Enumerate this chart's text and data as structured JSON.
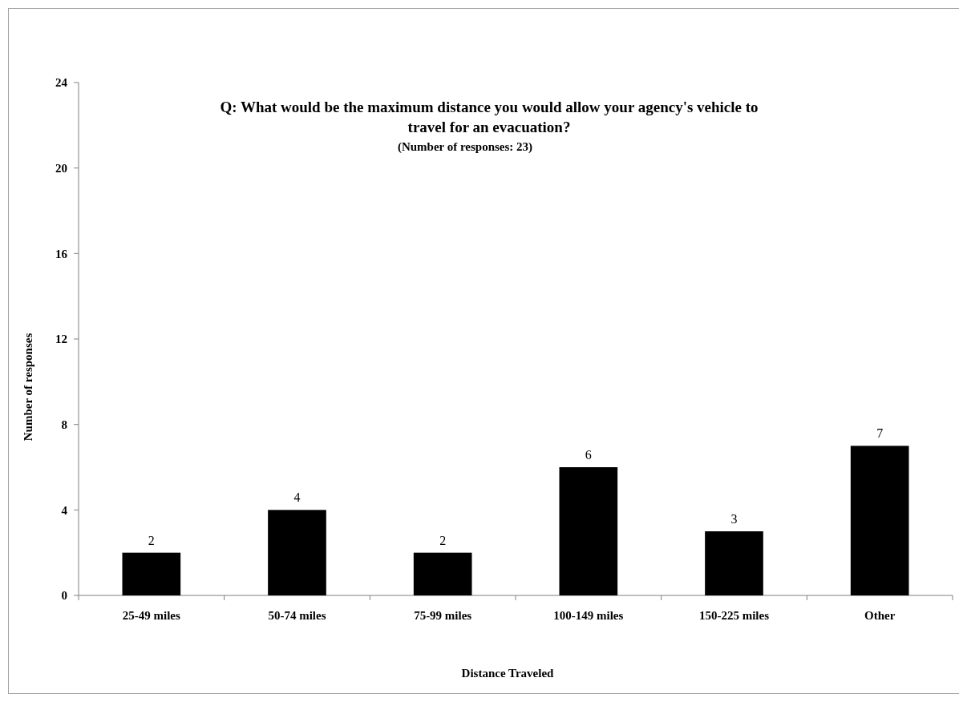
{
  "chart_data": {
    "type": "bar",
    "title": "Q: What would be the maximum distance you would allow your agency's vehicle to travel for an evacuation?",
    "subtitle": "(Number of responses: 23)",
    "xlabel": "Distance Traveled",
    "ylabel": "Number of responses",
    "categories": [
      "25-49 miles",
      "50-74 miles",
      "75-99 miles",
      "100-149 miles",
      "150-225 miles",
      "Other"
    ],
    "values": [
      2,
      4,
      2,
      6,
      3,
      7
    ],
    "color": "#000000",
    "ylim": [
      0,
      24
    ],
    "yticks": [
      0,
      4,
      8,
      12,
      16,
      20,
      24
    ],
    "grid": false,
    "data_labels": true
  }
}
